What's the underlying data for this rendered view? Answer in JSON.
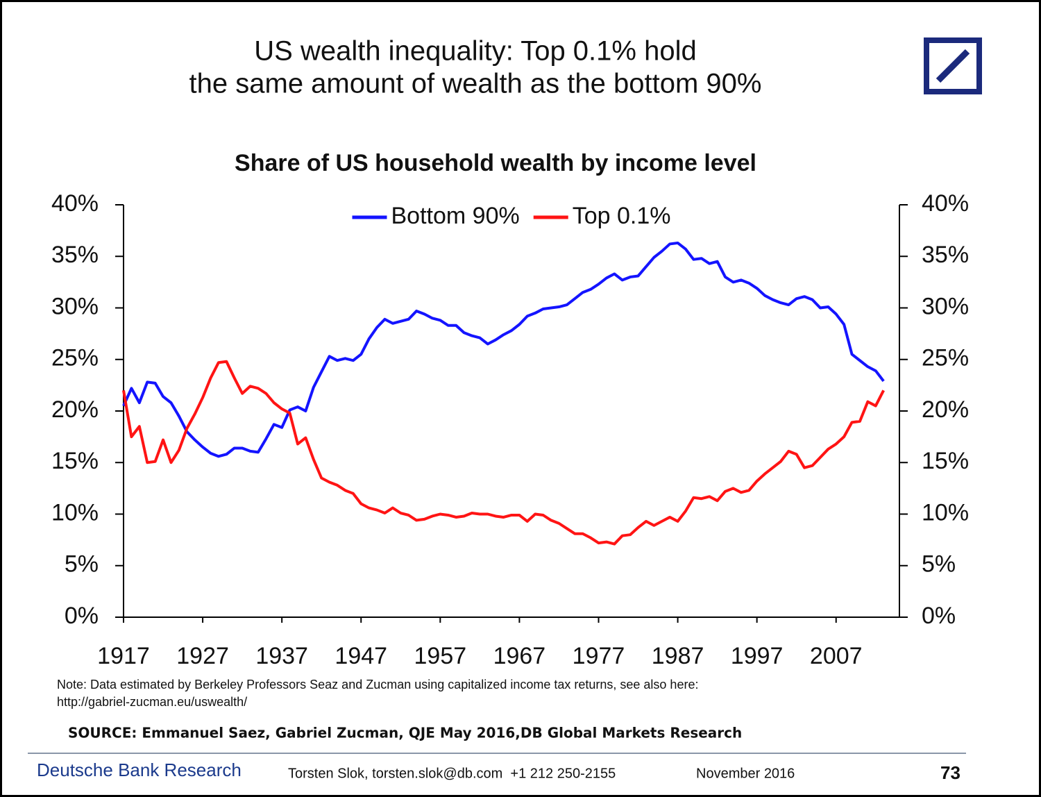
{
  "chart_data": {
    "type": "line",
    "suptitle": [
      "US wealth inequality: Top 0.1% hold",
      "the same amount of wealth as the bottom 90%"
    ],
    "title": "Share of US household wealth by income level",
    "x": [
      1917,
      1918,
      1919,
      1920,
      1921,
      1922,
      1923,
      1924,
      1925,
      1926,
      1927,
      1928,
      1929,
      1930,
      1931,
      1932,
      1933,
      1934,
      1935,
      1936,
      1937,
      1938,
      1939,
      1940,
      1941,
      1942,
      1943,
      1944,
      1945,
      1946,
      1947,
      1948,
      1949,
      1950,
      1951,
      1952,
      1953,
      1954,
      1955,
      1956,
      1957,
      1958,
      1959,
      1960,
      1961,
      1962,
      1963,
      1964,
      1965,
      1966,
      1967,
      1968,
      1969,
      1970,
      1971,
      1972,
      1973,
      1974,
      1975,
      1976,
      1977,
      1978,
      1979,
      1980,
      1981,
      1982,
      1983,
      1984,
      1985,
      1986,
      1987,
      1988,
      1989,
      1990,
      1991,
      1992,
      1993,
      1994,
      1995,
      1996,
      1997,
      1998,
      1999,
      2000,
      2001,
      2002,
      2003,
      2004,
      2005,
      2006,
      2007,
      2008,
      2009,
      2010,
      2011,
      2012,
      2013
    ],
    "series": [
      {
        "name": "Bottom 90%",
        "color": "#1414ff",
        "values": [
          20.5,
          22.2,
          20.8,
          22.8,
          22.7,
          21.4,
          20.8,
          19.5,
          18.0,
          17.2,
          16.5,
          15.9,
          15.6,
          15.8,
          16.4,
          16.4,
          16.1,
          16.0,
          17.3,
          18.7,
          18.4,
          20.1,
          20.4,
          20.0,
          22.3,
          23.8,
          25.3,
          24.9,
          25.1,
          24.9,
          25.5,
          27.0,
          28.1,
          28.9,
          28.5,
          28.7,
          28.9,
          29.7,
          29.4,
          29.0,
          28.8,
          28.3,
          28.3,
          27.6,
          27.3,
          27.1,
          26.5,
          26.9,
          27.4,
          27.8,
          28.4,
          29.2,
          29.5,
          29.9,
          30.0,
          30.1,
          30.3,
          30.9,
          31.5,
          31.8,
          32.3,
          32.9,
          33.3,
          32.7,
          33.0,
          33.1,
          34.0,
          34.9,
          35.5,
          36.2,
          36.3,
          35.7,
          34.7,
          34.8,
          34.3,
          34.5,
          33.0,
          32.5,
          32.7,
          32.4,
          31.9,
          31.2,
          30.8,
          30.5,
          30.3,
          30.9,
          31.1,
          30.8,
          30.0,
          30.1,
          29.4,
          28.4,
          25.5,
          24.9,
          24.3,
          23.9,
          22.9
        ]
      },
      {
        "name": "Top 0.1%",
        "color": "#ff1414",
        "values": [
          22.0,
          17.5,
          18.5,
          15.0,
          15.1,
          17.2,
          15.0,
          16.2,
          18.3,
          19.7,
          21.3,
          23.2,
          24.7,
          24.8,
          23.2,
          21.7,
          22.4,
          22.2,
          21.7,
          20.8,
          20.2,
          19.8,
          16.8,
          17.4,
          15.3,
          13.5,
          13.1,
          12.8,
          12.3,
          12.0,
          11.0,
          10.6,
          10.4,
          10.1,
          10.6,
          10.1,
          9.9,
          9.4,
          9.5,
          9.8,
          10.0,
          9.9,
          9.7,
          9.8,
          10.1,
          10.0,
          10.0,
          9.8,
          9.7,
          9.9,
          9.9,
          9.3,
          10.0,
          9.9,
          9.4,
          9.1,
          8.6,
          8.1,
          8.1,
          7.7,
          7.2,
          7.3,
          7.1,
          7.9,
          8.0,
          8.7,
          9.3,
          8.9,
          9.3,
          9.7,
          9.3,
          10.3,
          11.6,
          11.5,
          11.7,
          11.3,
          12.2,
          12.5,
          12.1,
          12.3,
          13.2,
          13.9,
          14.5,
          15.1,
          16.1,
          15.8,
          14.5,
          14.7,
          15.5,
          16.3,
          16.8,
          17.5,
          18.9,
          19.0,
          20.9,
          20.5,
          22.0
        ]
      }
    ],
    "xlim": [
      1917,
      2015
    ],
    "xticks": [
      1917,
      1927,
      1937,
      1947,
      1957,
      1967,
      1977,
      1987,
      1997,
      2007
    ],
    "ylim": [
      0,
      40
    ],
    "yticks": [
      {
        "value": 0,
        "label": "0%"
      },
      {
        "value": 5,
        "label": "5%"
      },
      {
        "value": 10,
        "label": "10%"
      },
      {
        "value": 15,
        "label": "15%"
      },
      {
        "value": 20,
        "label": "20%"
      },
      {
        "value": 25,
        "label": "25%"
      },
      {
        "value": 30,
        "label": "30%"
      },
      {
        "value": 35,
        "label": "35%"
      },
      {
        "value": 40,
        "label": "40%"
      }
    ],
    "y2lim": [
      0,
      40
    ],
    "y2ticks": [
      {
        "value": 0,
        "label": "0%"
      },
      {
        "value": 5,
        "label": "5%"
      },
      {
        "value": 10,
        "label": "10%"
      },
      {
        "value": 15,
        "label": "15%"
      },
      {
        "value": 20,
        "label": "20%"
      },
      {
        "value": 25,
        "label": "25%"
      },
      {
        "value": 30,
        "label": "30%"
      },
      {
        "value": 35,
        "label": "35%"
      },
      {
        "value": 40,
        "label": "40%"
      }
    ],
    "grid": false,
    "legend": "top"
  },
  "notes": [
    "Note: Data estimated by Berkeley Professors Seaz and Zucman using capitalized income tax returns, see also here:",
    "http://gabriel-zucman.eu/uswealth/"
  ],
  "source": "SOURCE: Emmanuel Saez, Gabriel Zucman, QJE May 2016,DB Global Markets Research",
  "footer": {
    "brand": "Deutsche Bank Research",
    "contact": "Torsten Slok, torsten.slok@db.com  +1 212 250-2155",
    "date": "November 2016",
    "page": "73"
  }
}
